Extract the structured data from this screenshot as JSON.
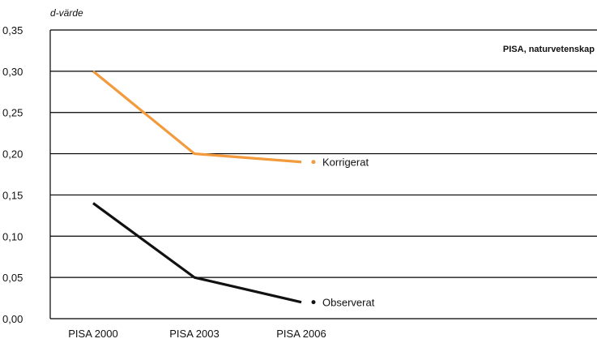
{
  "chart_data": {
    "type": "line",
    "title": "PISA, naturvetenskap",
    "ylabel": "d-värde",
    "xlabel": "",
    "categories": [
      "PISA 2000",
      "PISA 2003",
      "PISA 2006"
    ],
    "ylim": [
      0,
      0.35
    ],
    "yticks": [
      0,
      0.05,
      0.1,
      0.15,
      0.2,
      0.25,
      0.3,
      0.35
    ],
    "ytick_labels": [
      "0,00",
      "0,05",
      "0,10",
      "0,15",
      "0,20",
      "0,25",
      "0,30",
      "0,35"
    ],
    "grid": true,
    "legend_placement": "inline-right-of-series",
    "series": [
      {
        "name": "Korrigerat",
        "values": [
          0.3,
          0.2,
          0.19
        ],
        "color": "#f39a3c"
      },
      {
        "name": "Observerat",
        "values": [
          0.14,
          0.05,
          0.02
        ],
        "color": "#111111"
      }
    ]
  }
}
